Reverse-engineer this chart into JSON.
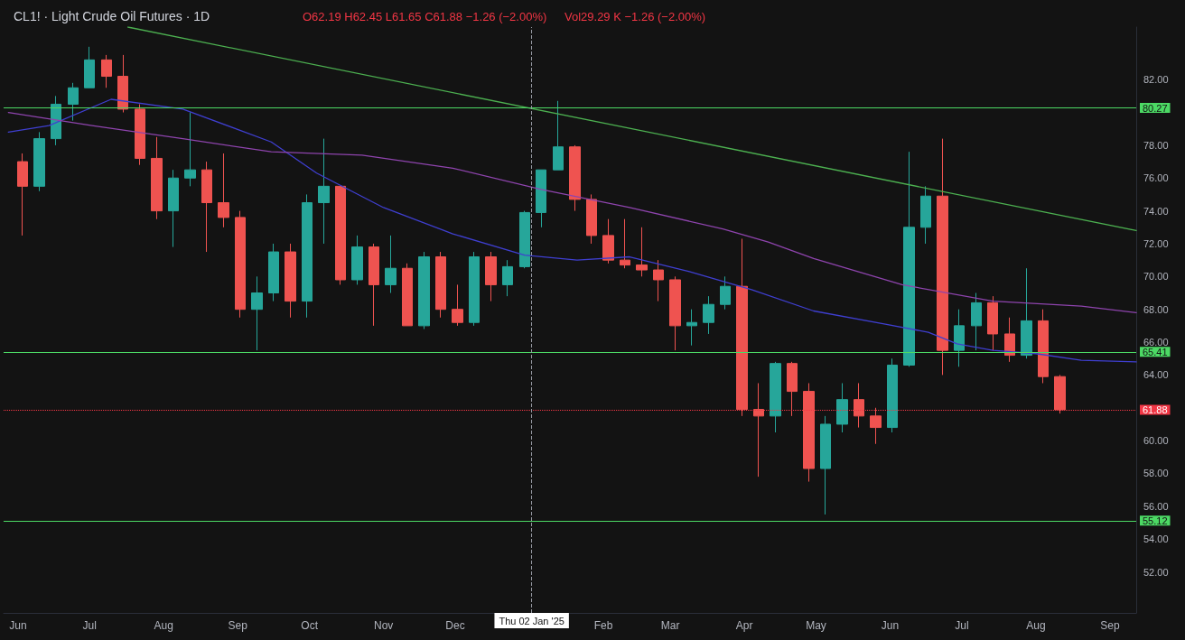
{
  "chart_data": {
    "type": "candlestick",
    "title": "CL1! · Light Crude Oil Futures · 1D",
    "subtitle": "O62.19 H62.45 L61.65 C61.88 −1.26 (−2.00%)",
    "annotations": [
      "Vol29.29 K −1.26 (−2.00%)"
    ],
    "series": [
      {
        "x": [
          "2024-06-03",
          "2024-06-10",
          "2024-06-17",
          "2024-06-24",
          "2024-07-01",
          "2024-07-08",
          "2024-07-15",
          "2024-07-22",
          "2024-07-29",
          "2024-08-05",
          "2024-08-12",
          "2024-08-19",
          "2024-08-26",
          "2024-09-02",
          "2024-09-09",
          "2024-09-16",
          "2024-09-23",
          "2024-09-30",
          "2024-10-07",
          "2024-10-14",
          "2024-10-21",
          "2024-10-28",
          "2024-11-04",
          "2024-11-11",
          "2024-11-18",
          "2024-11-25",
          "2024-12-02",
          "2024-12-09",
          "2024-12-16",
          "2024-12-23",
          "2024-12-30",
          "2025-01-06",
          "2025-01-13",
          "2025-01-20",
          "2025-01-27",
          "2025-02-03",
          "2025-02-10",
          "2025-02-17",
          "2025-02-24",
          "2025-03-03",
          "2025-03-10",
          "2025-03-17",
          "2025-03-24",
          "2025-03-31",
          "2025-04-07",
          "2025-04-14",
          "2025-04-21",
          "2025-04-28",
          "2025-05-05",
          "2025-05-12",
          "2025-05-19",
          "2025-05-26",
          "2025-06-02",
          "2025-06-09",
          "2025-06-16",
          "2025-06-23",
          "2025-06-30",
          "2025-07-07",
          "2025-07-14",
          "2025-07-21",
          "2025-07-28",
          "2025-08-04",
          "2025-08-11"
        ],
        "ohlc": [
          [
            77.0,
            77.5,
            72.5,
            75.5
          ],
          [
            75.5,
            78.8,
            75.2,
            78.4
          ],
          [
            78.4,
            81.0,
            78.0,
            80.5
          ],
          [
            80.5,
            81.8,
            79.5,
            81.5
          ],
          [
            81.5,
            84.0,
            81.5,
            83.2
          ],
          [
            83.2,
            83.5,
            81.5,
            82.2
          ],
          [
            82.2,
            83.5,
            80.0,
            80.2
          ],
          [
            80.2,
            80.5,
            76.8,
            77.2
          ],
          [
            77.2,
            78.5,
            73.5,
            74.0
          ],
          [
            74.0,
            76.5,
            71.8,
            76.0
          ],
          [
            76.0,
            80.0,
            75.5,
            76.5
          ],
          [
            76.5,
            77.0,
            71.5,
            74.5
          ],
          [
            74.5,
            77.5,
            73.0,
            73.6
          ],
          [
            73.6,
            74.0,
            67.5,
            68.0
          ],
          [
            68.0,
            70.0,
            65.5,
            69.0
          ],
          [
            69.0,
            72.0,
            68.5,
            71.5
          ],
          [
            71.5,
            72.0,
            67.5,
            68.5
          ],
          [
            68.5,
            75.0,
            67.5,
            74.5
          ],
          [
            74.5,
            78.4,
            72.0,
            75.5
          ],
          [
            75.5,
            75.5,
            69.5,
            69.8
          ],
          [
            69.8,
            72.5,
            69.5,
            71.8
          ],
          [
            71.8,
            72.0,
            67.0,
            69.5
          ],
          [
            69.5,
            72.5,
            69.0,
            70.5
          ],
          [
            70.5,
            70.8,
            67.0,
            67.0
          ],
          [
            67.0,
            71.5,
            66.8,
            71.2
          ],
          [
            71.2,
            71.5,
            67.5,
            68.0
          ],
          [
            68.0,
            69.5,
            67.0,
            67.2
          ],
          [
            67.2,
            71.5,
            67.0,
            71.2
          ],
          [
            71.2,
            71.5,
            68.5,
            69.5
          ],
          [
            69.5,
            71.0,
            68.8,
            70.6
          ],
          [
            70.6,
            74.0,
            70.5,
            73.9
          ],
          [
            73.9,
            76.5,
            73.0,
            76.5
          ],
          [
            76.5,
            80.7,
            76.5,
            77.9
          ],
          [
            77.9,
            78.0,
            74.0,
            74.7
          ],
          [
            74.7,
            75.0,
            72.0,
            72.5
          ],
          [
            72.5,
            73.5,
            70.8,
            71.0
          ],
          [
            71.0,
            73.5,
            70.5,
            70.7
          ],
          [
            70.7,
            73.0,
            70.0,
            70.4
          ],
          [
            70.4,
            71.0,
            68.5,
            69.8
          ],
          [
            69.8,
            70.0,
            65.5,
            67.0
          ],
          [
            67.0,
            68.0,
            65.8,
            67.2
          ],
          [
            67.2,
            68.8,
            66.5,
            68.3
          ],
          [
            68.3,
            70.0,
            68.0,
            69.4
          ],
          [
            69.4,
            72.3,
            61.5,
            61.9
          ],
          [
            61.9,
            63.5,
            57.8,
            61.5
          ],
          [
            61.5,
            64.8,
            60.5,
            64.7
          ],
          [
            64.7,
            64.8,
            61.5,
            63.0
          ],
          [
            63.0,
            63.5,
            57.5,
            58.3
          ],
          [
            58.3,
            61.5,
            55.5,
            61.0
          ],
          [
            61.0,
            63.5,
            60.5,
            62.5
          ],
          [
            62.5,
            63.5,
            60.8,
            61.5
          ],
          [
            61.5,
            62.0,
            59.8,
            60.8
          ],
          [
            60.8,
            65.0,
            60.5,
            64.6
          ],
          [
            64.6,
            77.6,
            64.5,
            73.0
          ],
          [
            73.0,
            75.5,
            72.0,
            74.9
          ],
          [
            74.9,
            78.4,
            64.0,
            65.5
          ],
          [
            65.5,
            68.0,
            64.5,
            67.0
          ],
          [
            67.0,
            69.0,
            65.5,
            68.4
          ],
          [
            68.4,
            68.8,
            65.5,
            66.5
          ],
          [
            66.5,
            67.5,
            64.8,
            65.2
          ],
          [
            65.2,
            70.5,
            65.0,
            67.3
          ],
          [
            67.3,
            68.0,
            63.5,
            63.9
          ],
          [
            63.9,
            64.0,
            61.65,
            61.88
          ]
        ],
        "colors": [
          "#ef5350",
          "#26a69a",
          "#26a69a",
          "#26a69a",
          "#26a69a",
          "#ef5350",
          "#ef5350",
          "#ef5350",
          "#ef5350",
          "#26a69a",
          "#26a69a",
          "#ef5350",
          "#ef5350",
          "#ef5350",
          "#26a69a",
          "#26a69a",
          "#ef5350",
          "#26a69a",
          "#26a69a",
          "#ef5350",
          "#26a69a",
          "#ef5350",
          "#26a69a",
          "#ef5350",
          "#26a69a",
          "#ef5350",
          "#ef5350",
          "#26a69a",
          "#ef5350",
          "#26a69a",
          "#26a69a",
          "#26a69a",
          "#26a69a",
          "#ef5350",
          "#ef5350",
          "#ef5350",
          "#ef5350",
          "#ef5350",
          "#ef5350",
          "#ef5350",
          "#26a69a",
          "#26a69a",
          "#26a69a",
          "#ef5350",
          "#ef5350",
          "#26a69a",
          "#ef5350",
          "#ef5350",
          "#26a69a",
          "#26a69a",
          "#ef5350",
          "#ef5350",
          "#26a69a",
          "#26a69a",
          "#26a69a",
          "#ef5350",
          "#26a69a",
          "#26a69a",
          "#ef5350",
          "#ef5350",
          "#26a69a",
          "#ef5350",
          "#ef5350"
        ]
      },
      {
        "type": "line",
        "color": "#3f3fd0",
        "x": [
          "2024-05-28",
          "2024-06-14",
          "2024-07-10",
          "2024-08-09",
          "2024-09-15",
          "2024-10-04",
          "2024-11-01",
          "2024-11-30",
          "2024-12-30",
          "2025-01-21",
          "2025-02-12",
          "2025-03-09",
          "2025-04-04",
          "2025-04-30",
          "2025-05-30",
          "2025-06-17",
          "2025-06-29",
          "2025-07-14",
          "2025-08-01",
          "2025-08-20",
          "2025-09-12"
        ],
        "values": [
          78.8,
          79.2,
          80.8,
          80.2,
          78.2,
          76.3,
          74.2,
          72.6,
          71.3,
          71.0,
          71.2,
          70.3,
          69.2,
          67.9,
          67.1,
          66.6,
          65.9,
          65.5,
          65.3,
          64.9,
          64.8
        ]
      },
      {
        "type": "line",
        "color": "#8e44ad",
        "x": [
          "2024-05-28",
          "2024-07-02",
          "2024-08-09",
          "2024-09-15",
          "2024-10-23",
          "2024-11-30",
          "2025-01-06",
          "2025-02-12",
          "2025-03-23",
          "2025-04-11",
          "2025-04-30",
          "2025-06-06",
          "2025-07-14",
          "2025-08-20",
          "2025-09-12"
        ],
        "values": [
          80.0,
          79.2,
          78.4,
          77.6,
          77.4,
          76.6,
          75.3,
          74.2,
          72.9,
          72.1,
          71.1,
          69.5,
          68.5,
          68.2,
          67.8
        ]
      },
      {
        "type": "line",
        "color": "#4caf50",
        "x": [
          "2024-07-17",
          "2025-09-12"
        ],
        "values": [
          85.2,
          72.8
        ]
      }
    ],
    "xlim": [
      "2024-05-26",
      "2025-09-12"
    ],
    "xticks": [
      {
        "value": "2024-06-01",
        "label": "Jun"
      },
      {
        "value": "2024-07-01",
        "label": "Jul"
      },
      {
        "value": "2024-08-01",
        "label": "Aug"
      },
      {
        "value": "2024-09-01",
        "label": "Sep"
      },
      {
        "value": "2024-10-01",
        "label": "Oct"
      },
      {
        "value": "2024-11-01",
        "label": "Nov"
      },
      {
        "value": "2024-12-01",
        "label": "Dec"
      },
      {
        "value": "2025-02-01",
        "label": "Feb"
      },
      {
        "value": "2025-03-01",
        "label": "Mar"
      },
      {
        "value": "2025-04-01",
        "label": "Apr"
      },
      {
        "value": "2025-05-01",
        "label": "May"
      },
      {
        "value": "2025-06-01",
        "label": "Jun"
      },
      {
        "value": "2025-07-01",
        "label": "Jul"
      },
      {
        "value": "2025-08-01",
        "label": "Aug"
      },
      {
        "value": "2025-09-01",
        "label": "Sep"
      }
    ],
    "ylim": [
      49.5,
      85.2
    ],
    "yticks": [
      {
        "value": 52,
        "label": "52.00"
      },
      {
        "value": 54,
        "label": "54.00"
      },
      {
        "value": 56,
        "label": "56.00"
      },
      {
        "value": 58,
        "label": "58.00"
      },
      {
        "value": 60,
        "label": "60.00"
      },
      {
        "value": 64,
        "label": "64.00"
      },
      {
        "value": 66,
        "label": "66.00"
      },
      {
        "value": 68,
        "label": "68.00"
      },
      {
        "value": 70,
        "label": "70.00"
      },
      {
        "value": 72,
        "label": "72.00"
      },
      {
        "value": 74,
        "label": "74.00"
      },
      {
        "value": 76,
        "label": "76.00"
      },
      {
        "value": 78,
        "label": "78.00"
      },
      {
        "value": 82,
        "label": "82.00"
      }
    ],
    "ref_lines": [
      {
        "axis": "y",
        "value": 80.27,
        "label": "80.27",
        "color": "#4cd964",
        "line_style": "solid"
      },
      {
        "axis": "y",
        "value": 65.41,
        "label": "65.41",
        "color": "#4cd964",
        "line_style": "solid"
      },
      {
        "axis": "y",
        "value": 55.12,
        "label": "55.12",
        "color": "#4cd964",
        "line_style": "solid"
      },
      {
        "axis": "y",
        "value": 61.88,
        "label": "61.88",
        "color": "#f23645",
        "line_style": "dotted"
      },
      {
        "axis": "x",
        "value": "2025-01-02",
        "label": "Thu 02 Jan '25",
        "color": "#9598a1",
        "line_style": "dashed"
      }
    ],
    "marker": "none",
    "grid": false
  }
}
